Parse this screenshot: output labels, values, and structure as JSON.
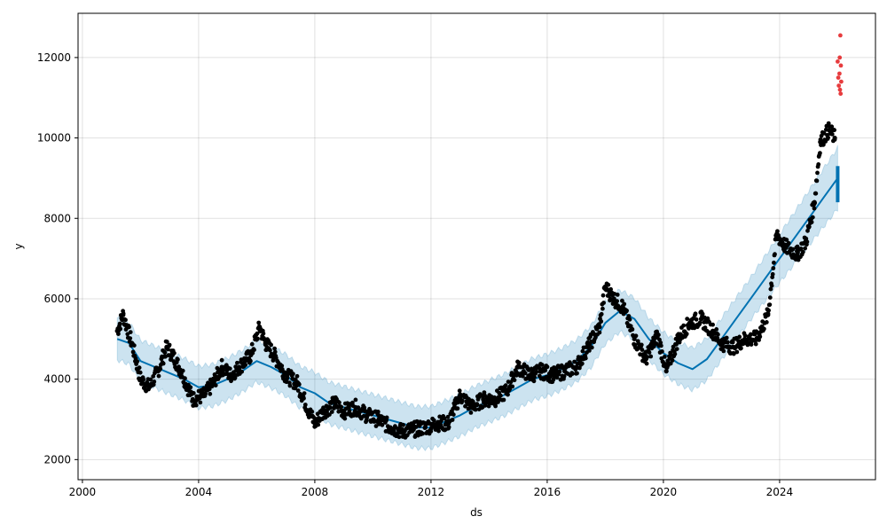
{
  "chart_data": {
    "type": "line",
    "title": "",
    "xlabel": "ds",
    "ylabel": "y",
    "xlim": [
      1999.85,
      2027.3
    ],
    "ylim": [
      1500,
      13100
    ],
    "x_ticks": [
      2000,
      2004,
      2008,
      2012,
      2016,
      2020,
      2024
    ],
    "y_ticks": [
      2000,
      4000,
      6000,
      8000,
      10000,
      12000
    ],
    "grid": true,
    "colors": {
      "observed": "#000000",
      "forecast": "#0072B2",
      "interval": "#0072B2",
      "outliers": "#e31a1c"
    },
    "series": [
      {
        "kind": "forecast",
        "points": [
          [
            2001.2,
            5000
          ],
          [
            2001.6,
            4900
          ],
          [
            2002.0,
            4450
          ],
          [
            2002.5,
            4300
          ],
          [
            2003.0,
            4150
          ],
          [
            2003.5,
            4000
          ],
          [
            2004.0,
            3800
          ],
          [
            2004.5,
            3850
          ],
          [
            2005.0,
            4000
          ],
          [
            2005.5,
            4200
          ],
          [
            2006.0,
            4450
          ],
          [
            2006.5,
            4300
          ],
          [
            2007.0,
            4100
          ],
          [
            2007.5,
            3800
          ],
          [
            2008.0,
            3650
          ],
          [
            2008.5,
            3400
          ],
          [
            2009.0,
            3300
          ],
          [
            2009.5,
            3200
          ],
          [
            2010.0,
            3100
          ],
          [
            2010.5,
            3000
          ],
          [
            2011.0,
            2900
          ],
          [
            2011.5,
            2800
          ],
          [
            2012.0,
            2800
          ],
          [
            2012.5,
            2950
          ],
          [
            2013.0,
            3100
          ],
          [
            2013.5,
            3300
          ],
          [
            2014.0,
            3450
          ],
          [
            2014.5,
            3600
          ],
          [
            2015.0,
            3800
          ],
          [
            2015.5,
            4000
          ],
          [
            2016.0,
            4100
          ],
          [
            2016.5,
            4250
          ],
          [
            2017.0,
            4450
          ],
          [
            2017.5,
            4800
          ],
          [
            2018.0,
            5400
          ],
          [
            2018.5,
            5700
          ],
          [
            2019.0,
            5500
          ],
          [
            2019.5,
            5000
          ],
          [
            2020.0,
            4650
          ],
          [
            2020.5,
            4400
          ],
          [
            2021.0,
            4250
          ],
          [
            2021.5,
            4500
          ],
          [
            2022.0,
            5000
          ],
          [
            2022.5,
            5500
          ],
          [
            2023.0,
            6000
          ],
          [
            2023.5,
            6500
          ],
          [
            2024.0,
            7000
          ],
          [
            2024.5,
            7500
          ],
          [
            2025.0,
            8000
          ],
          [
            2025.5,
            8500
          ],
          [
            2026.0,
            9000
          ]
        ]
      },
      {
        "kind": "observed",
        "points": [
          [
            2001.2,
            5200
          ],
          [
            2001.4,
            5600
          ],
          [
            2001.7,
            4900
          ],
          [
            2002.0,
            4000
          ],
          [
            2002.3,
            3800
          ],
          [
            2002.6,
            4200
          ],
          [
            2002.9,
            4800
          ],
          [
            2003.1,
            4600
          ],
          [
            2003.4,
            4200
          ],
          [
            2003.8,
            3500
          ],
          [
            2004.2,
            3600
          ],
          [
            2004.5,
            3900
          ],
          [
            2004.8,
            4300
          ],
          [
            2005.1,
            4100
          ],
          [
            2005.4,
            4300
          ],
          [
            2005.8,
            4600
          ],
          [
            2006.1,
            5300
          ],
          [
            2006.3,
            4900
          ],
          [
            2006.6,
            4600
          ],
          [
            2007.0,
            4100
          ],
          [
            2007.4,
            3900
          ],
          [
            2007.8,
            3200
          ],
          [
            2008.0,
            2900
          ],
          [
            2008.3,
            3200
          ],
          [
            2008.7,
            3400
          ],
          [
            2009.0,
            3200
          ],
          [
            2009.4,
            3300
          ],
          [
            2009.8,
            3100
          ],
          [
            2010.2,
            3000
          ],
          [
            2010.6,
            2800
          ],
          [
            2011.0,
            2700
          ],
          [
            2011.4,
            2750
          ],
          [
            2011.8,
            2800
          ],
          [
            2012.2,
            2900
          ],
          [
            2012.6,
            2900
          ],
          [
            2013.0,
            3600
          ],
          [
            2013.4,
            3300
          ],
          [
            2013.8,
            3500
          ],
          [
            2014.2,
            3500
          ],
          [
            2014.6,
            3700
          ],
          [
            2015.0,
            4300
          ],
          [
            2015.4,
            4100
          ],
          [
            2015.8,
            4200
          ],
          [
            2016.2,
            4100
          ],
          [
            2016.6,
            4200
          ],
          [
            2017.0,
            4300
          ],
          [
            2017.4,
            4800
          ],
          [
            2017.8,
            5300
          ],
          [
            2018.0,
            6300
          ],
          [
            2018.3,
            6000
          ],
          [
            2018.6,
            5800
          ],
          [
            2019.0,
            5000
          ],
          [
            2019.4,
            4500
          ],
          [
            2019.8,
            5100
          ],
          [
            2020.1,
            4200
          ],
          [
            2020.5,
            5000
          ],
          [
            2020.9,
            5400
          ],
          [
            2021.3,
            5500
          ],
          [
            2021.7,
            5200
          ],
          [
            2022.0,
            4900
          ],
          [
            2022.4,
            4800
          ],
          [
            2022.8,
            5000
          ],
          [
            2023.2,
            5000
          ],
          [
            2023.6,
            5600
          ],
          [
            2023.9,
            7600
          ],
          [
            2024.2,
            7300
          ],
          [
            2024.6,
            7100
          ],
          [
            2024.9,
            7400
          ],
          [
            2025.2,
            8400
          ],
          [
            2025.4,
            9900
          ],
          [
            2025.7,
            10200
          ],
          [
            2025.9,
            10000
          ]
        ]
      },
      {
        "kind": "outliers",
        "points": [
          [
            2026.0,
            11900
          ],
          [
            2026.02,
            11500
          ],
          [
            2026.04,
            11300
          ],
          [
            2026.06,
            11600
          ],
          [
            2026.07,
            12000
          ],
          [
            2026.08,
            11200
          ],
          [
            2026.09,
            12550
          ],
          [
            2026.1,
            11100
          ],
          [
            2026.11,
            11800
          ],
          [
            2026.12,
            11400
          ]
        ]
      }
    ]
  }
}
